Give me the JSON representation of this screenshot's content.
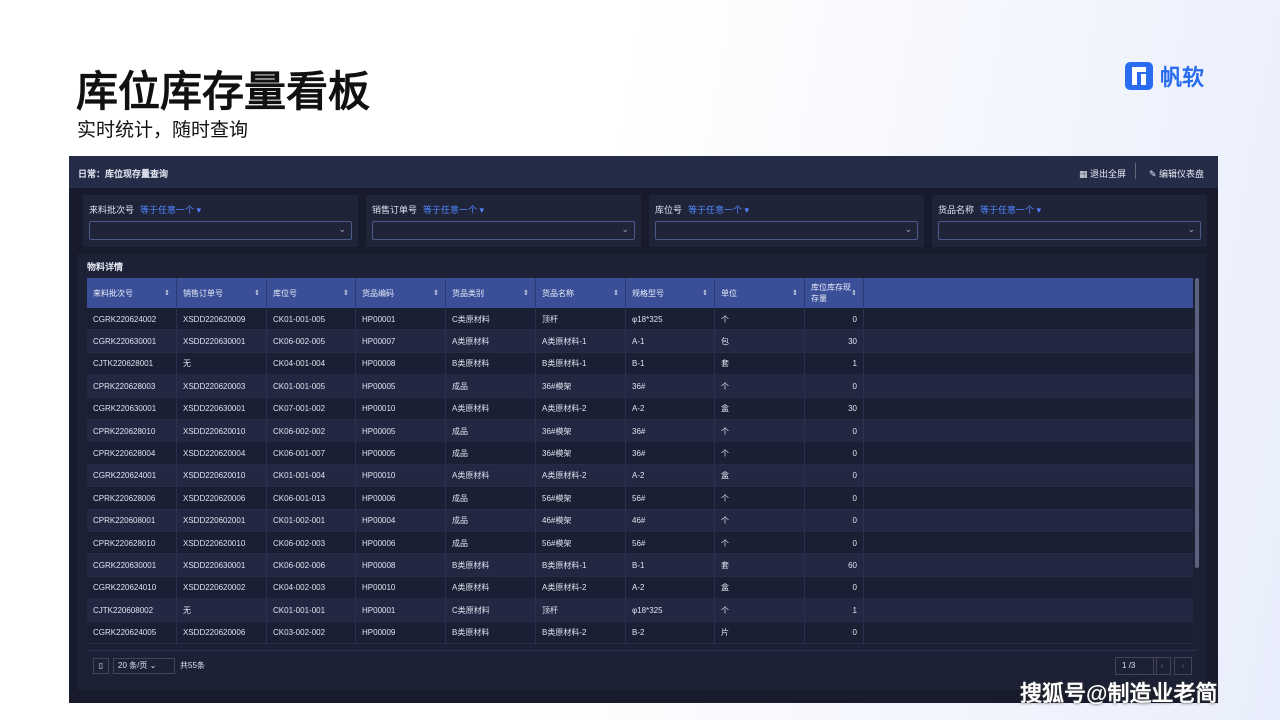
{
  "header": {
    "title": "库位库存量看板",
    "subtitle": "实时统计，随时查询",
    "logo": "帆软"
  },
  "panel": {
    "title": "日常：库位现存量查询",
    "buttons": [
      "退出全屏",
      "编辑仪表盘"
    ]
  },
  "filters": [
    {
      "label": "来料批次号",
      "mode": "等于任意一个"
    },
    {
      "label": "销售订单号",
      "mode": "等于任意一个"
    },
    {
      "label": "库位号",
      "mode": "等于任意一个"
    },
    {
      "label": "货品名称",
      "mode": "等于任意一个"
    }
  ],
  "section": "物料详情",
  "table": {
    "columns": [
      "来料批次号",
      "销售订单号",
      "库位号",
      "货品编码",
      "货品类别",
      "货品名称",
      "规格型号",
      "单位",
      "库位库存现存量"
    ],
    "rows": [
      [
        "CGRK220624002",
        "XSDD220620009",
        "CK01-001-005",
        "HP00001",
        "C类原材料",
        "顶杆",
        "φ18*325",
        "个",
        0
      ],
      [
        "CGRK220630001",
        "XSDD220630001",
        "CK06-002-005",
        "HP00007",
        "A类原材料",
        "A类原材料-1",
        "A-1",
        "包",
        30
      ],
      [
        "CJTK220628001",
        "无",
        "CK04-001-004",
        "HP00008",
        "B类原材料",
        "B类原材料-1",
        "B-1",
        "套",
        1
      ],
      [
        "CPRK220628003",
        "XSDD220620003",
        "CK01-001-005",
        "HP00005",
        "成品",
        "36#模架",
        "36#",
        "个",
        0
      ],
      [
        "CGRK220630001",
        "XSDD220630001",
        "CK07-001-002",
        "HP00010",
        "A类原材料",
        "A类原材料-2",
        "A-2",
        "盒",
        30
      ],
      [
        "CPRK220628010",
        "XSDD220620010",
        "CK06-002-002",
        "HP00005",
        "成品",
        "36#模架",
        "36#",
        "个",
        0
      ],
      [
        "CPRK220628004",
        "XSDD220620004",
        "CK06-001-007",
        "HP00005",
        "成品",
        "36#模架",
        "36#",
        "个",
        0
      ],
      [
        "CGRK220624001",
        "XSDD220620010",
        "CK01-001-004",
        "HP00010",
        "A类原材料",
        "A类原材料-2",
        "A-2",
        "盒",
        0
      ],
      [
        "CPRK220628006",
        "XSDD220620006",
        "CK06-001-013",
        "HP00006",
        "成品",
        "56#模架",
        "56#",
        "个",
        0
      ],
      [
        "CPRK220608001",
        "XSDD220602001",
        "CK01-002-001",
        "HP00004",
        "成品",
        "46#模架",
        "46#",
        "个",
        0
      ],
      [
        "CPRK220628010",
        "XSDD220620010",
        "CK06-002-003",
        "HP00006",
        "成品",
        "56#模架",
        "56#",
        "个",
        0
      ],
      [
        "CGRK220630001",
        "XSDD220630001",
        "CK06-002-006",
        "HP00008",
        "B类原材料",
        "B类原材料-1",
        "B-1",
        "套",
        60
      ],
      [
        "CGRK220624010",
        "XSDD220620002",
        "CK04-002-003",
        "HP00010",
        "A类原材料",
        "A类原材料-2",
        "A-2",
        "盒",
        0
      ],
      [
        "CJTK220608002",
        "无",
        "CK01-001-001",
        "HP00001",
        "C类原材料",
        "顶杆",
        "φ18*325",
        "个",
        1
      ],
      [
        "CGRK220624005",
        "XSDD220620006",
        "CK03-002-002",
        "HP00009",
        "B类原材料",
        "B类原材料-2",
        "B-2",
        "片",
        0
      ]
    ]
  },
  "pagination": {
    "page_size": "20 条/页",
    "total": "共55条",
    "page": "1",
    "pages": "/3"
  },
  "watermark": "搜狐号@制造业老简"
}
